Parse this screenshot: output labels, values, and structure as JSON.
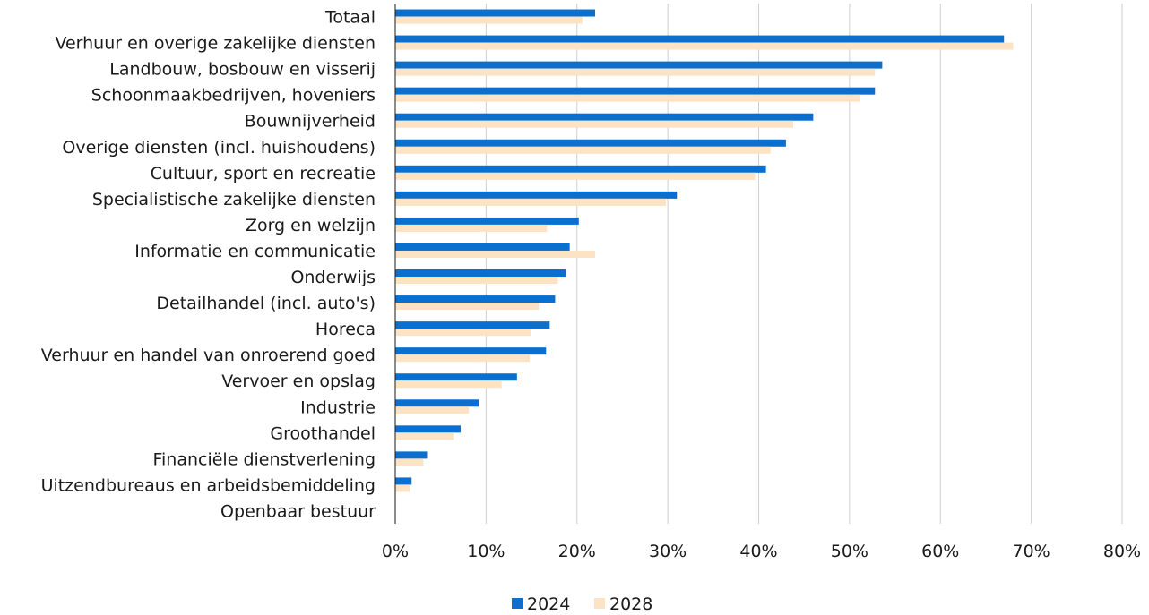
{
  "chart_data": {
    "type": "bar",
    "orientation": "horizontal",
    "categories": [
      "Totaal",
      "Verhuur en overige zakelijke diensten",
      "Landbouw, bosbouw en visserij",
      "Schoonmaakbedrijven, hoveniers",
      "Bouwnijverheid",
      "Overige diensten (incl. huishoudens)",
      "Cultuur, sport en recreatie",
      "Specialistische zakelijke diensten",
      "Zorg en welzijn",
      "Informatie en communicatie",
      "Onderwijs",
      "Detailhandel (incl. auto's)",
      "Horeca",
      "Verhuur en handel van onroerend goed",
      "Vervoer en opslag",
      "Industrie",
      "Groothandel",
      "Financiële dienstverlening",
      "Uitzendbureaus en arbeidsbemiddeling",
      "Openbaar bestuur"
    ],
    "series": [
      {
        "name": "2024",
        "color": "#0a6fce",
        "values": [
          22,
          67,
          53.6,
          52.8,
          46,
          43,
          40.8,
          31,
          20.2,
          19.2,
          18.8,
          17.6,
          17,
          16.6,
          13.4,
          9.2,
          7.2,
          3.5,
          1.8,
          0
        ]
      },
      {
        "name": "2028",
        "color": "#fbe3c3",
        "values": [
          20.6,
          68,
          52.8,
          51.2,
          43.8,
          41.3,
          39.6,
          29.8,
          16.7,
          22,
          17.9,
          15.8,
          14.9,
          14.8,
          11.7,
          8.1,
          6.4,
          3.1,
          1.6,
          0
        ]
      }
    ],
    "xticks": [
      "0%",
      "10%",
      "20%",
      "30%",
      "40%",
      "50%",
      "60%",
      "70%",
      "80%"
    ],
    "xlim": [
      0,
      80
    ],
    "grid": "vertical",
    "legend": "bottom-center"
  }
}
